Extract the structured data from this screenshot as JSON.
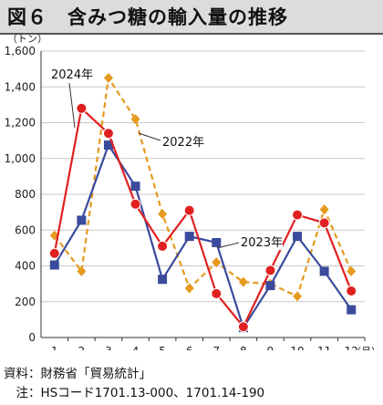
{
  "title": "図６　含みつ糖の輸入量の推移",
  "notes": {
    "source": "資料：財務省「貿易統計」",
    "note": "　注：HSコード1701.13-000、1701.14-190"
  },
  "chart_data": {
    "type": "line",
    "title": "図６　含みつ糖の輸入量の推移",
    "ylabel": "（トン）",
    "xlabel": "（月）",
    "ylim": [
      0,
      1600
    ],
    "yticks": [
      0,
      200,
      400,
      600,
      800,
      1000,
      1200,
      1400,
      1600
    ],
    "ytick_labels": [
      "0",
      "200",
      "400",
      "600",
      "800",
      "1,000",
      "1,200",
      "1,400",
      "1,600"
    ],
    "categories": [
      "1",
      "2",
      "3",
      "4",
      "5",
      "6",
      "7",
      "8",
      "9",
      "10",
      "11",
      "12"
    ],
    "grid": true,
    "series": [
      {
        "name": "2022年",
        "color": "#e69a1e",
        "dash": true,
        "marker": "diamond",
        "values": [
          570,
          370,
          1450,
          1220,
          690,
          275,
          420,
          310,
          300,
          230,
          715,
          370
        ]
      },
      {
        "name": "2023年",
        "color": "#3a4a9c",
        "dash": false,
        "marker": "square",
        "values": [
          405,
          655,
          1075,
          845,
          325,
          565,
          530,
          55,
          290,
          565,
          370,
          155
        ]
      },
      {
        "name": "2024年",
        "color": "#e02020",
        "dash": false,
        "marker": "circle",
        "values": [
          470,
          1280,
          1140,
          745,
          510,
          710,
          245,
          60,
          375,
          685,
          640,
          260
        ]
      }
    ],
    "annotations": [
      "2024年",
      "2022年",
      "2023年"
    ]
  }
}
